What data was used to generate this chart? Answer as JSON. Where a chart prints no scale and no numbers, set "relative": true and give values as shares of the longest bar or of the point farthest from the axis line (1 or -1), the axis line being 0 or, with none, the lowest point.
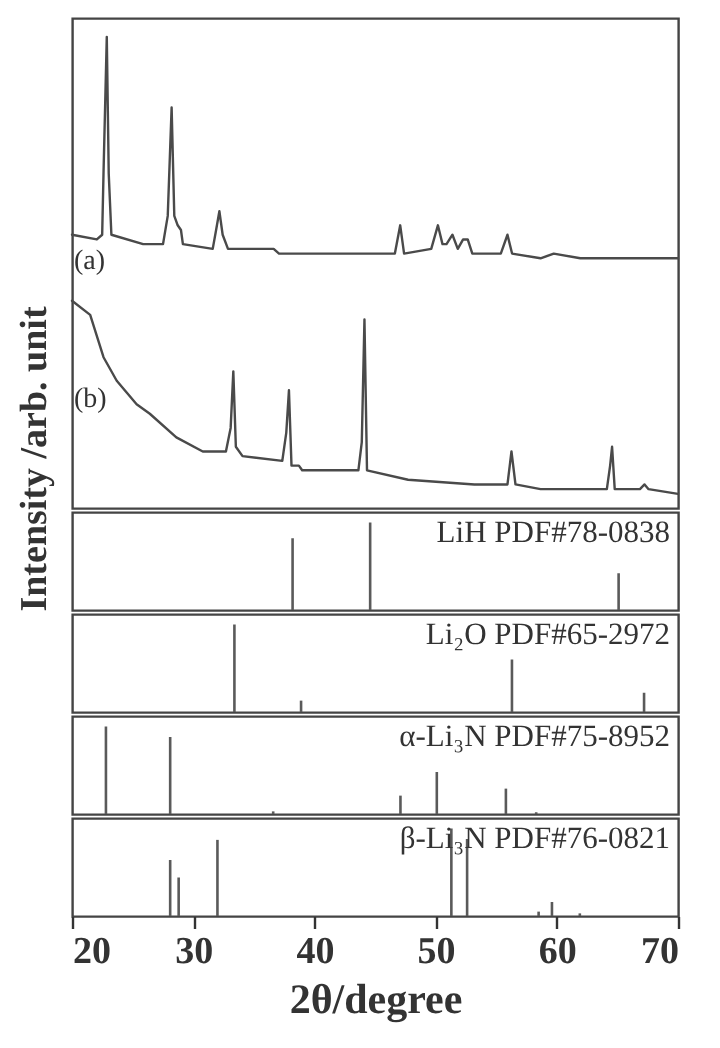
{
  "chart_data": [
    {
      "type": "line",
      "relative": true,
      "ylabel": "Intensity /arb. unit",
      "xlim": [
        20,
        70
      ],
      "tick_labels": false,
      "series": [
        {
          "name": "(a)",
          "color": "#4a4a4a",
          "x": [
            20,
            22.05,
            22.49,
            22.6,
            22.87,
            23.03,
            23.25,
            25.87,
            27.51,
            27.9,
            28.22,
            28.44,
            28.72,
            28.99,
            29.15,
            31.61,
            31.89,
            32.16,
            32.43,
            32.87,
            36.26,
            36.64,
            37.08,
            42.27,
            46.64,
            47.08,
            47.4,
            49.64,
            50.19,
            50.57,
            50.9,
            51.39,
            51.83,
            52.27,
            52.65,
            53.03,
            55.38,
            55.93,
            56.31,
            58.66,
            59.75,
            61.94,
            64.13,
            70
          ],
          "values": [
            0.58,
            0.57,
            0.58,
            0.71,
            1,
            0.71,
            0.58,
            0.56,
            0.56,
            0.62,
            0.85,
            0.62,
            0.6,
            0.59,
            0.56,
            0.55,
            0.59,
            0.63,
            0.58,
            0.55,
            0.55,
            0.55,
            0.54,
            0.54,
            0.54,
            0.6,
            0.54,
            0.55,
            0.6,
            0.56,
            0.56,
            0.58,
            0.55,
            0.57,
            0.57,
            0.54,
            0.54,
            0.58,
            0.54,
            0.53,
            0.54,
            0.53,
            0.53,
            0.53
          ]
        },
        {
          "name": "(b)",
          "color": "#4a4a4a",
          "x": [
            20,
            21.5,
            22.6,
            23.69,
            25.33,
            26.42,
            28.61,
            30.79,
            32.7,
            33.09,
            33.31,
            33.52,
            34.07,
            37.35,
            37.68,
            37.9,
            38.11,
            38.72,
            38.99,
            43.63,
            43.91,
            44.13,
            44.34,
            47.73,
            53.2,
            55.93,
            56.26,
            56.59,
            58.66,
            64.13,
            64.4,
            64.56,
            64.78,
            66.86,
            67.24,
            67.57,
            70
          ],
          "values": [
            0.44,
            0.41,
            0.32,
            0.27,
            0.22,
            0.2,
            0.15,
            0.12,
            0.12,
            0.17,
            0.29,
            0.13,
            0.11,
            0.1,
            0.16,
            0.25,
            0.09,
            0.09,
            0.08,
            0.08,
            0.14,
            0.4,
            0.08,
            0.06,
            0.05,
            0.05,
            0.12,
            0.05,
            0.04,
            0.04,
            0.09,
            0.13,
            0.04,
            0.04,
            0.05,
            0.04,
            0.03
          ]
        }
      ]
    },
    {
      "type": "bar",
      "relative": true,
      "title": "LiH PDF#78-0838",
      "xlim": [
        20,
        70
      ],
      "tick_labels": false,
      "color": "#5a5a5a",
      "x": [
        38.2,
        44.6,
        65.1
      ],
      "values": [
        0.82,
        1,
        0.42
      ]
    },
    {
      "type": "bar",
      "relative": true,
      "title": "Li₂O PDF#65-2972",
      "xlim": [
        20,
        70
      ],
      "tick_labels": false,
      "color": "#5a5a5a",
      "x": [
        33.4,
        38.9,
        56.3,
        67.2
      ],
      "values": [
        1,
        0.13,
        0.6,
        0.22
      ]
    },
    {
      "type": "bar",
      "relative": true,
      "title": "α-Li₃N PDF#75-8952",
      "xlim": [
        20,
        70
      ],
      "tick_labels": false,
      "color": "#5a5a5a",
      "x": [
        22.8,
        28.1,
        36.6,
        47.1,
        50.1,
        55.8,
        58.3
      ],
      "values": [
        1,
        0.88,
        0.03,
        0.21,
        0.48,
        0.29,
        0.02
      ]
    },
    {
      "type": "bar",
      "relative": true,
      "title": "β-Li₃N PDF#76-0821",
      "xlabel": "2θ/degree",
      "xlim": [
        20,
        70
      ],
      "xticks": [
        20,
        30,
        40,
        50,
        60,
        70
      ],
      "tick_labels": "x",
      "color": "#5a5a5a",
      "x": [
        28.1,
        28.8,
        32.0,
        51.3,
        52.6,
        58.5,
        59.6,
        61.9
      ],
      "values": [
        0.64,
        0.44,
        0.87,
        1,
        0.88,
        0.05,
        0.16,
        0.03
      ]
    }
  ]
}
